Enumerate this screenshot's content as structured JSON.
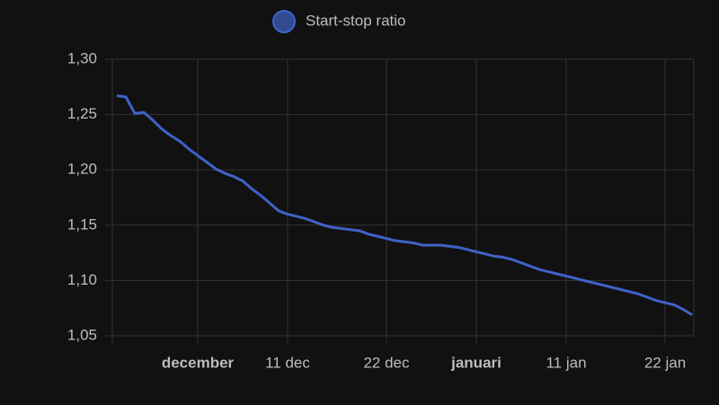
{
  "chart_data": {
    "type": "line",
    "x": [
      "22 nov",
      "23 nov",
      "24 nov",
      "25 nov",
      "26 nov",
      "27 nov",
      "28 nov",
      "29 nov",
      "30 nov",
      "1 dec",
      "2 dec",
      "3 dec",
      "4 dec",
      "5 dec",
      "6 dec",
      "7 dec",
      "8 dec",
      "9 dec",
      "10 dec",
      "11 dec",
      "12 dec",
      "13 dec",
      "14 dec",
      "15 dec",
      "16 dec",
      "17 dec",
      "18 dec",
      "19 dec",
      "20 dec",
      "21 dec",
      "22 dec",
      "23 dec",
      "24 dec",
      "25 dec",
      "26 dec",
      "27 dec",
      "28 dec",
      "29 dec",
      "30 dec",
      "31 dec",
      "1 jan",
      "2 jan",
      "3 jan",
      "4 jan",
      "5 jan",
      "6 jan",
      "7 jan",
      "8 jan",
      "9 jan",
      "10 jan",
      "11 jan",
      "12 jan",
      "13 jan",
      "14 jan",
      "15 jan",
      "16 jan",
      "17 jan",
      "18 jan",
      "19 jan",
      "20 jan",
      "21 jan",
      "22 jan",
      "23 jan",
      "24 jan",
      "25 jan"
    ],
    "series": [
      {
        "name": "Start-stop ratio",
        "color": "#3f62c8",
        "values": [
          1.267,
          1.266,
          1.251,
          1.252,
          1.245,
          1.237,
          1.231,
          1.226,
          1.219,
          1.213,
          1.207,
          1.201,
          1.197,
          1.194,
          1.19,
          1.183,
          1.177,
          1.17,
          1.163,
          1.16,
          1.158,
          1.156,
          1.153,
          1.15,
          1.148,
          1.147,
          1.146,
          1.145,
          1.142,
          1.14,
          1.138,
          1.136,
          1.135,
          1.134,
          1.132,
          1.132,
          1.132,
          1.131,
          1.13,
          1.128,
          1.126,
          1.124,
          1.122,
          1.121,
          1.119,
          1.116,
          1.113,
          1.11,
          1.108,
          1.106,
          1.104,
          1.102,
          1.1,
          1.098,
          1.096,
          1.094,
          1.092,
          1.09,
          1.088,
          1.085,
          1.082,
          1.08,
          1.078,
          1.074,
          1.069
        ]
      }
    ],
    "xticks": [
      {
        "value": "1 dec",
        "label": "december",
        "bold": true
      },
      {
        "value": "11 dec",
        "label": "11 dec"
      },
      {
        "value": "22 dec",
        "label": "22 dec"
      },
      {
        "value": "1 jan",
        "label": "januari",
        "bold": true
      },
      {
        "value": "11 jan",
        "label": "11 jan"
      },
      {
        "value": "22 jan",
        "label": "22 jan"
      }
    ],
    "ylim": [
      1.05,
      1.3
    ],
    "yticks": [
      {
        "value": 1.05,
        "label": "1,05"
      },
      {
        "value": 1.1,
        "label": "1,10"
      },
      {
        "value": 1.15,
        "label": "1,15"
      },
      {
        "value": 1.2,
        "label": "1,20"
      },
      {
        "value": 1.25,
        "label": "1,25"
      },
      {
        "value": 1.3,
        "label": "1,30"
      }
    ],
    "grid": true
  }
}
